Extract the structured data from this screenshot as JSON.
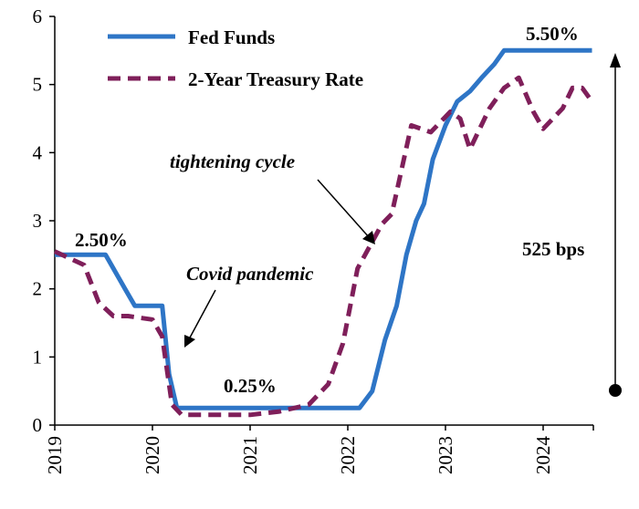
{
  "chart_data": {
    "type": "line",
    "title": "",
    "xlabel": "",
    "ylabel": "",
    "x_ticks": [
      "2019",
      "2020",
      "2021",
      "2022",
      "2023",
      "2024"
    ],
    "y_ticks": [
      "0",
      "1",
      "2",
      "3",
      "4",
      "5",
      "6"
    ],
    "xlim": [
      2019.0,
      2024.5
    ],
    "ylim": [
      0,
      6
    ],
    "grid": false,
    "legend": "top-left",
    "series": [
      {
        "name": "Fed Funds",
        "color": "#2E75C6",
        "style": "solid",
        "points": [
          [
            2019.0,
            2.5
          ],
          [
            2019.52,
            2.5
          ],
          [
            2019.62,
            2.25
          ],
          [
            2019.72,
            2.0
          ],
          [
            2019.82,
            1.75
          ],
          [
            2020.1,
            1.75
          ],
          [
            2020.17,
            0.75
          ],
          [
            2020.25,
            0.25
          ],
          [
            2021.5,
            0.25
          ],
          [
            2022.12,
            0.25
          ],
          [
            2022.25,
            0.5
          ],
          [
            2022.38,
            1.25
          ],
          [
            2022.5,
            1.75
          ],
          [
            2022.6,
            2.5
          ],
          [
            2022.7,
            3.0
          ],
          [
            2022.78,
            3.25
          ],
          [
            2022.87,
            3.9
          ],
          [
            2023.0,
            4.4
          ],
          [
            2023.12,
            4.75
          ],
          [
            2023.25,
            4.9
          ],
          [
            2023.37,
            5.1
          ],
          [
            2023.5,
            5.3
          ],
          [
            2023.6,
            5.5
          ],
          [
            2024.5,
            5.5
          ]
        ]
      },
      {
        "name": "2-Year Treasury Rate",
        "color": "#7F1F5A",
        "style": "dashed",
        "points": [
          [
            2019.0,
            2.55
          ],
          [
            2019.15,
            2.45
          ],
          [
            2019.3,
            2.35
          ],
          [
            2019.45,
            1.8
          ],
          [
            2019.6,
            1.6
          ],
          [
            2019.75,
            1.6
          ],
          [
            2020.0,
            1.55
          ],
          [
            2020.1,
            1.3
          ],
          [
            2020.2,
            0.3
          ],
          [
            2020.3,
            0.15
          ],
          [
            2020.5,
            0.15
          ],
          [
            2021.0,
            0.15
          ],
          [
            2021.3,
            0.2
          ],
          [
            2021.6,
            0.3
          ],
          [
            2021.8,
            0.6
          ],
          [
            2021.95,
            1.2
          ],
          [
            2022.1,
            2.3
          ],
          [
            2022.35,
            2.95
          ],
          [
            2022.45,
            3.1
          ],
          [
            2022.65,
            4.4
          ],
          [
            2022.85,
            4.3
          ],
          [
            2023.05,
            4.6
          ],
          [
            2023.15,
            4.5
          ],
          [
            2023.25,
            4.05
          ],
          [
            2023.45,
            4.65
          ],
          [
            2023.6,
            4.95
          ],
          [
            2023.75,
            5.1
          ],
          [
            2023.9,
            4.6
          ],
          [
            2024.0,
            4.35
          ],
          [
            2024.1,
            4.5
          ],
          [
            2024.2,
            4.65
          ],
          [
            2024.3,
            4.95
          ],
          [
            2024.4,
            4.95
          ],
          [
            2024.5,
            4.75
          ]
        ]
      }
    ],
    "annotations": {
      "fed_start": "2.50%",
      "fed_end": "5.50%",
      "fed_low": "0.25%",
      "covid": "Covid pandemic",
      "tightening": "tightening cycle",
      "bps": "525 bps"
    }
  }
}
